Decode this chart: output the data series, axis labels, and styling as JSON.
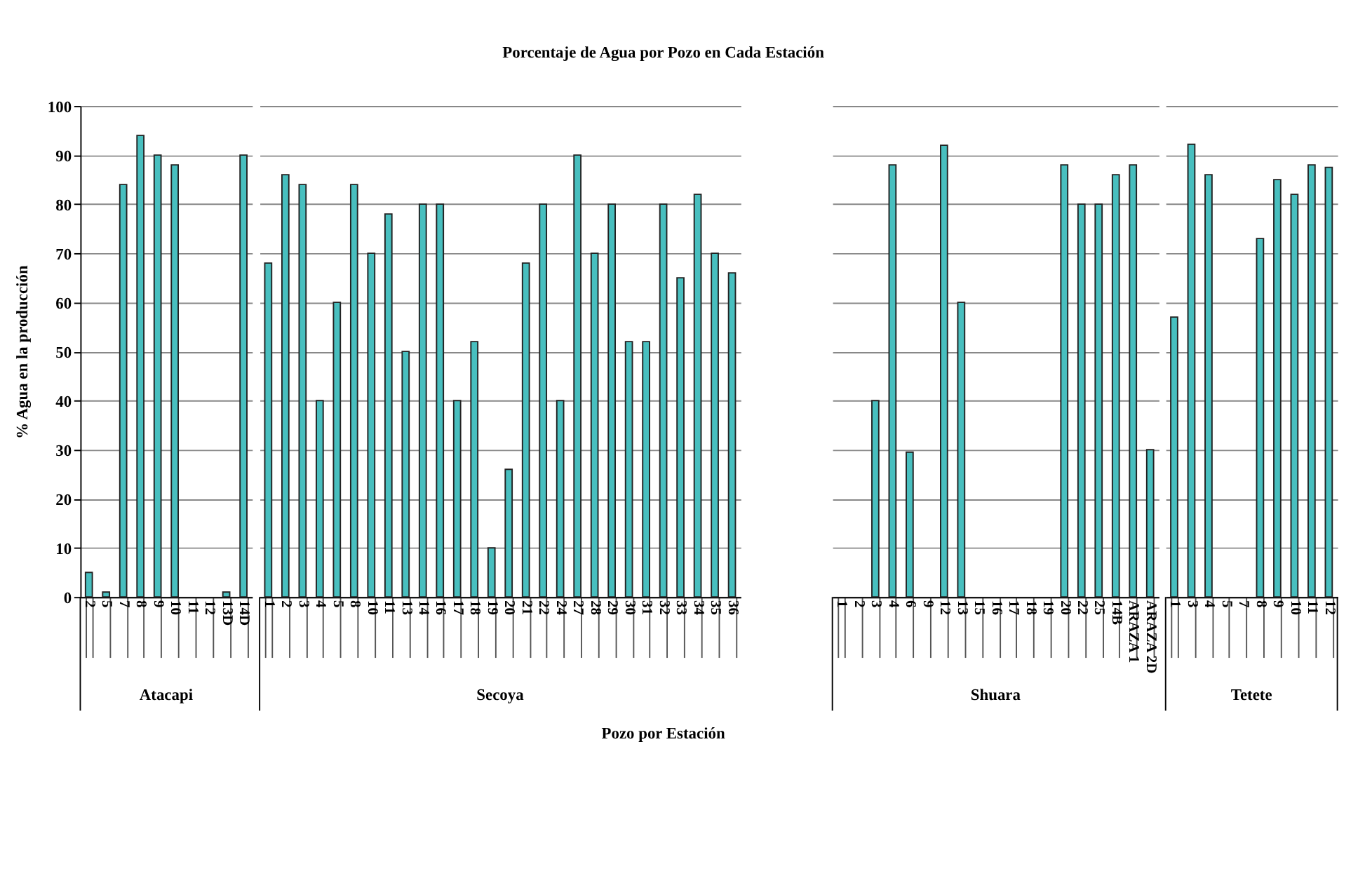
{
  "chart_data": [
    {
      "type": "bar",
      "ylabel": "% Agua en la producción",
      "xlabel": "Atacapi",
      "categories": [
        "2",
        "5",
        "7",
        "8",
        "9",
        "10",
        "11",
        "12",
        "13D",
        "14D"
      ],
      "values": [
        5,
        1,
        84,
        94,
        90,
        88,
        null,
        null,
        1,
        90
      ],
      "color": "#48bfbf",
      "ylim": [
        0,
        100
      ],
      "yticks": [
        0,
        10,
        20,
        30,
        40,
        50,
        60,
        70,
        80,
        90,
        100
      ],
      "grid": "y"
    },
    {
      "type": "bar",
      "title": "Porcentaje de Agua por Pozo en Cada Estación",
      "xlabel": "Secoya",
      "annotations": [
        "Pozo por Estación"
      ],
      "categories": [
        "1",
        "2",
        "3",
        "4",
        "5",
        "8",
        "10",
        "11",
        "13",
        "14",
        "16",
        "17",
        "18",
        "19",
        "20",
        "21",
        "22",
        "24",
        "27",
        "28",
        "29",
        "30",
        "31",
        "32",
        "33",
        "34",
        "35",
        "36"
      ],
      "values": [
        68,
        86,
        84,
        40,
        60,
        84,
        70,
        78,
        50,
        80,
        80,
        40,
        52,
        10,
        26,
        68,
        80,
        40,
        90,
        70,
        80,
        52,
        52,
        80,
        65,
        82,
        70,
        66
      ],
      "color": "#48bfbf",
      "ylim": [
        0,
        100
      ],
      "yticks": [
        0,
        10,
        20,
        30,
        40,
        50,
        60,
        70,
        80,
        90,
        100
      ],
      "grid": "y",
      "tick_labels": "x"
    },
    {
      "type": "bar",
      "xlabel": "Shuara",
      "categories": [
        "1",
        "2",
        "3",
        "4",
        "6",
        "9",
        "12",
        "13",
        "15",
        "16",
        "17",
        "18",
        "19",
        "20",
        "22",
        "25",
        "14B",
        "ARAZA 1",
        "ARAZA 2D"
      ],
      "values": [
        null,
        null,
        40,
        88,
        29.5,
        null,
        92,
        60,
        null,
        null,
        null,
        null,
        null,
        88,
        80,
        80,
        86,
        88,
        30
      ],
      "color": "#48bfbf",
      "ylim": [
        0,
        100
      ],
      "yticks": [
        0,
        10,
        20,
        30,
        40,
        50,
        60,
        70,
        80,
        90,
        100
      ],
      "grid": "y",
      "tick_labels": "x"
    },
    {
      "type": "bar",
      "xlabel": "Tetete",
      "categories": [
        "1",
        "3",
        "4",
        "5",
        "7",
        "8",
        "9",
        "10",
        "11",
        "12"
      ],
      "values": [
        57,
        92.2,
        86,
        null,
        null,
        73,
        85,
        82,
        88,
        87.5
      ],
      "color": "#48bfbf",
      "ylim": [
        0,
        100
      ],
      "yticks": [
        0,
        10,
        20,
        30,
        40,
        50,
        60,
        70,
        80,
        90,
        100
      ],
      "grid": "y",
      "tick_labels": "x"
    }
  ]
}
